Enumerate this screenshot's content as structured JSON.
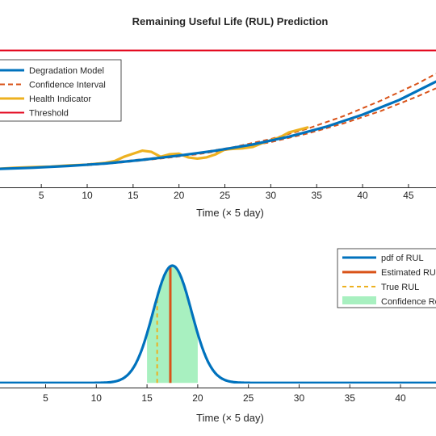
{
  "chart_data": [
    {
      "type": "line",
      "title": "Remaining Useful Life (RUL) Prediction",
      "xlabel": "Time (× 5 day)",
      "ylabel": "",
      "xlim": [
        0.5,
        48
      ],
      "ylim": [
        -0.15,
        1.0
      ],
      "xticks": [
        "5",
        "10",
        "15",
        "20",
        "25",
        "30",
        "35",
        "40",
        "45"
      ],
      "legend_position": "top-left",
      "series": [
        {
          "name": "Degradation Model",
          "color": "#0072BD",
          "style": "solid",
          "x": [
            0,
            4,
            8,
            12,
            16,
            20,
            24,
            28,
            32,
            36,
            40,
            44,
            48
          ],
          "y": [
            0.0,
            0.01,
            0.025,
            0.045,
            0.075,
            0.11,
            0.15,
            0.2,
            0.265,
            0.345,
            0.445,
            0.565,
            0.715
          ]
        },
        {
          "name": "Confidence Interval",
          "color": "#D95319",
          "style": "dashed",
          "x": [
            10,
            14,
            18,
            22,
            26,
            30,
            34,
            38,
            42,
            46,
            48
          ],
          "y": [
            0.04,
            0.065,
            0.095,
            0.13,
            0.18,
            0.245,
            0.33,
            0.435,
            0.56,
            0.7,
            0.78
          ]
        },
        {
          "name": "",
          "color": "#D95319",
          "style": "dashed",
          "x": [
            10,
            14,
            18,
            22,
            26,
            30,
            34,
            38,
            42,
            46,
            48
          ],
          "y": [
            0.03,
            0.055,
            0.085,
            0.12,
            0.165,
            0.22,
            0.29,
            0.375,
            0.475,
            0.595,
            0.66
          ]
        },
        {
          "name": "Health Indicator",
          "color": "#EDB120",
          "style": "solid",
          "x": [
            0,
            2,
            4,
            6,
            8,
            10,
            12,
            13,
            14,
            15,
            16,
            17,
            18,
            19,
            20,
            21,
            22,
            23,
            24,
            25,
            26,
            27,
            28,
            29,
            30,
            31,
            32,
            33,
            34
          ],
          "y": [
            0.0,
            0.01,
            0.015,
            0.02,
            0.03,
            0.035,
            0.05,
            0.065,
            0.1,
            0.125,
            0.15,
            0.14,
            0.1,
            0.12,
            0.125,
            0.095,
            0.085,
            0.095,
            0.12,
            0.16,
            0.165,
            0.17,
            0.18,
            0.21,
            0.235,
            0.26,
            0.3,
            0.32,
            0.34
          ]
        },
        {
          "name": "Threshold",
          "color": "#E3061C",
          "style": "solid",
          "x": [
            0,
            48
          ],
          "y": [
            0.97,
            0.97
          ]
        }
      ]
    },
    {
      "type": "area",
      "title": "",
      "xlabel": "Time (× 5 day)",
      "ylabel": "",
      "xlim": [
        0.5,
        43.5
      ],
      "ylim": [
        -0.02,
        0.6
      ],
      "xticks": [
        "5",
        "10",
        "15",
        "20",
        "25",
        "30",
        "35",
        "40"
      ],
      "legend_position": "top-right",
      "pdf_curve": {
        "name": "pdf of RUL",
        "color": "#0072BD",
        "mean": 17.5,
        "std": 1.9,
        "peak": 0.5
      },
      "markers": [
        {
          "name": "Estimated RUL",
          "color": "#D95319",
          "x": 17.3,
          "style": "solid"
        },
        {
          "name": "True RUL",
          "color": "#EDB120",
          "x": 16.0,
          "style": "dashed"
        }
      ],
      "band": {
        "name": "Confidence Region",
        "color": "#A8F0C0",
        "x0": 15.0,
        "x1": 20.0
      },
      "legend_labels": [
        "pdf of RUL",
        "Estimated RUL",
        "True RUL",
        "Confidence Region"
      ]
    }
  ]
}
